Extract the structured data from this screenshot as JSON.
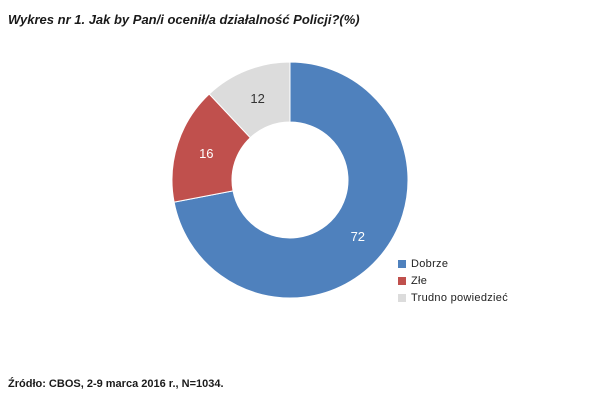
{
  "chart_data": {
    "type": "pie",
    "variant": "donut",
    "title": "Wykres nr 1.  Jak by Pan/i ocenił/a działalność Policji?(%)",
    "categories": [
      "Dobrze",
      "Złe",
      "Trudno powiedzieć"
    ],
    "values": [
      72,
      16,
      12
    ],
    "colors": [
      "#4f81bd",
      "#c0504d",
      "#dcdcdc"
    ],
    "label_colors": [
      "#ffffff",
      "#ffffff",
      "#333333"
    ],
    "legend_position": "bottom-right",
    "source": "Źródło: CBOS, 2-9 marca 2016 r., N=1034."
  }
}
